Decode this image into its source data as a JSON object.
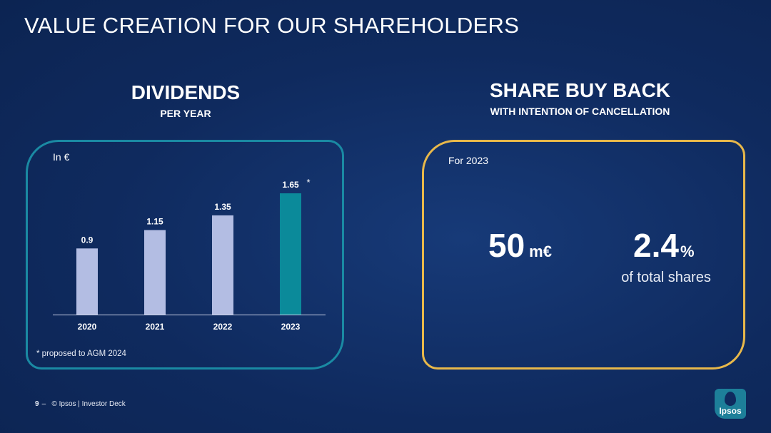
{
  "page": {
    "title": "VALUE CREATION FOR OUR SHAREHOLDERS",
    "page_number": "9",
    "footer_separator": "–",
    "footer_text": "© Ipsos | Investor Deck"
  },
  "dividends": {
    "title": "DIVIDENDS",
    "subtitle": "PER YEAR",
    "unit_label": "In €",
    "footnote": "* proposed to AGM 2024",
    "asterisk": "*"
  },
  "buyback": {
    "title": "SHARE BUY BACK",
    "subtitle": "WITH INTENTION OF CANCELLATION",
    "period_label": "For 2023",
    "amount_value": "50",
    "amount_unit": "m€",
    "pct_value": "2.4",
    "pct_unit": "%",
    "pct_caption": "of total shares"
  },
  "logo": {
    "text": "Ipsos",
    "icon": "ipsos-logo-icon"
  },
  "colors": {
    "background": "#0f2a5e",
    "dividends_border": "#1a8aa3",
    "buyback_border": "#e8b84a",
    "bar_past": "#b3bde3",
    "bar_highlight": "#0b8a9a"
  },
  "chart_data": {
    "type": "bar",
    "categories": [
      "2020",
      "2021",
      "2022",
      "2023"
    ],
    "values": [
      0.9,
      1.15,
      1.35,
      1.65
    ],
    "value_labels": [
      "0.9",
      "1.15",
      "1.35",
      "1.65"
    ],
    "highlight_index": 3,
    "title": "DIVIDENDS",
    "subtitle": "PER YEAR",
    "ylabel": "In €",
    "xlabel": "",
    "ylim": [
      0,
      1.65
    ],
    "grid": false,
    "legend": "none"
  }
}
